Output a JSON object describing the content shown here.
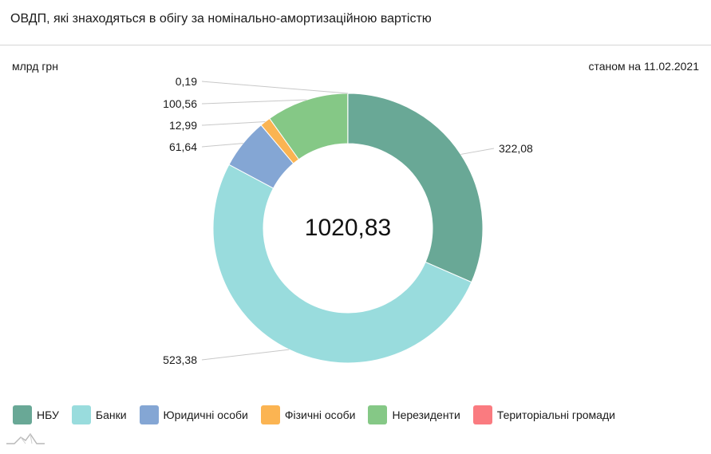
{
  "title": "ОВДП, які знаходяться в обігу за номінально-амортизаційною вартістю",
  "units": "млрд грн",
  "as_of": "станом на 11.02.2021",
  "chart_data": {
    "type": "pie",
    "donut": true,
    "center_label": "1020,83",
    "categories": [
      "НБУ",
      "Банки",
      "Юридичні особи",
      "Фізичні особи",
      "Нерезиденти",
      "Територіальні громади"
    ],
    "values": [
      322.08,
      523.38,
      61.64,
      12.99,
      100.56,
      0.19
    ],
    "value_labels": [
      "322,08",
      "523,38",
      "61,64",
      "12,99",
      "100,56",
      "0,19"
    ],
    "colors": [
      "#69a896",
      "#99dcdd",
      "#84a6d4",
      "#fbb452",
      "#85c886",
      "#fa7b80"
    ],
    "legend_position": "bottom-left"
  }
}
